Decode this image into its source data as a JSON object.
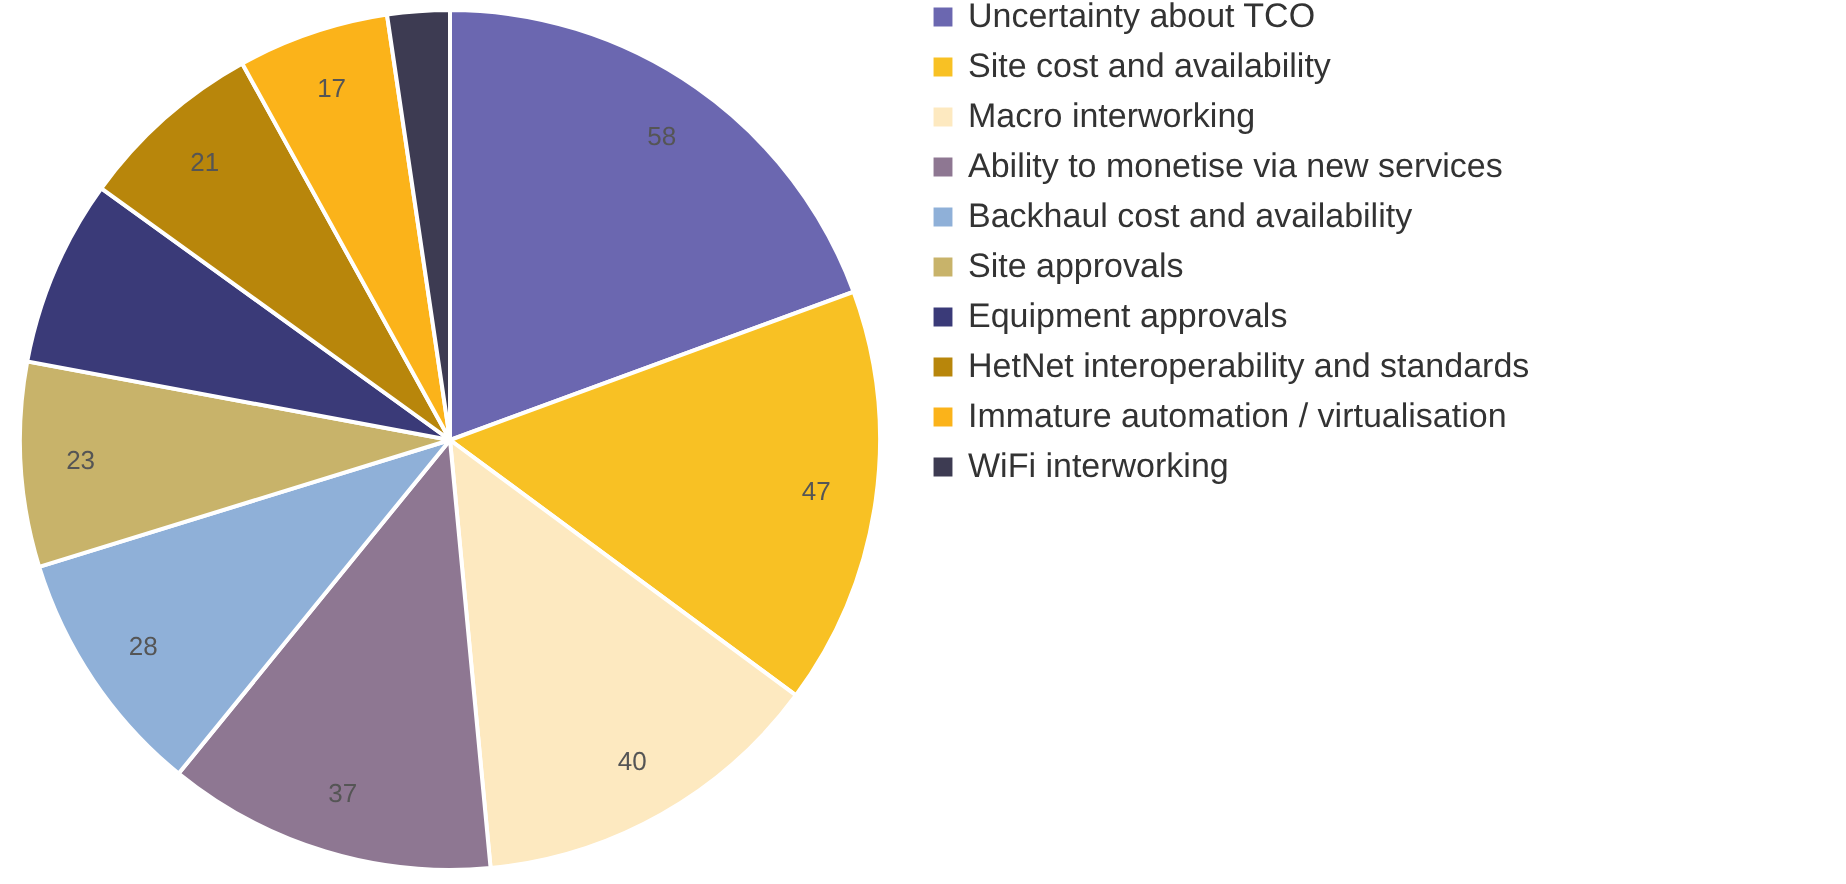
{
  "chart_data": {
    "type": "pie",
    "categories": [
      "Uncertainty about TCO",
      "Site cost and availability",
      "Macro interworking",
      "Ability to monetise via new services",
      "Backhaul cost and availability",
      "Site approvals",
      "Equipment approvals",
      "HetNet interoperability and standards",
      "Immature automation / virtualisation",
      "WiFi interworking"
    ],
    "values": [
      58,
      47,
      40,
      37,
      28,
      23,
      21,
      21,
      17,
      7
    ],
    "value_labels": [
      "58",
      "47",
      "40",
      "37",
      "28",
      "23",
      null,
      "21",
      "17",
      null
    ],
    "colors": [
      "#6b67b0",
      "#f8c124",
      "#fde9c0",
      "#8e7792",
      "#8fb0d8",
      "#c8b36a",
      "#3a3a78",
      "#b8860b",
      "#fbb31a",
      "#3d3b52"
    ],
    "legend": "right"
  }
}
